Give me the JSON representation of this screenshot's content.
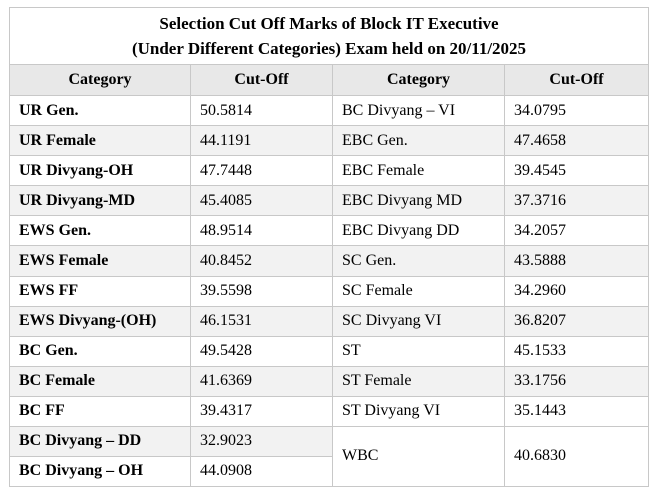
{
  "title_line1": "Selection Cut Off Marks of Block IT Executive",
  "title_line2": "(Under Different Categories) Exam held on 20/11/2025",
  "headers": {
    "category": "Category",
    "cutoff": "Cut-Off"
  },
  "left_rows": [
    {
      "category": "UR Gen.",
      "cutoff": "50.5814"
    },
    {
      "category": "UR Female",
      "cutoff": "44.1191"
    },
    {
      "category": "UR Divyang-OH",
      "cutoff": "47.7448"
    },
    {
      "category": "UR Divyang-MD",
      "cutoff": "45.4085"
    },
    {
      "category": "EWS Gen.",
      "cutoff": "48.9514"
    },
    {
      "category": "EWS Female",
      "cutoff": "40.8452"
    },
    {
      "category": "EWS FF",
      "cutoff": "39.5598"
    },
    {
      "category": "EWS Divyang-(OH)",
      "cutoff": "46.1531"
    },
    {
      "category": "BC Gen.",
      "cutoff": "49.5428"
    },
    {
      "category": "BC Female",
      "cutoff": "41.6369"
    },
    {
      "category": "BC FF",
      "cutoff": "39.4317"
    },
    {
      "category": "BC Divyang – DD",
      "cutoff": "32.9023"
    },
    {
      "category": "BC Divyang – OH",
      "cutoff": "44.0908"
    }
  ],
  "right_rows": [
    {
      "category": "BC Divyang – VI",
      "cutoff": "34.0795"
    },
    {
      "category": "EBC Gen.",
      "cutoff": "47.4658"
    },
    {
      "category": "EBC Female",
      "cutoff": "39.4545"
    },
    {
      "category": "EBC Divyang MD",
      "cutoff": "37.3716"
    },
    {
      "category": "EBC Divyang DD",
      "cutoff": "34.2057"
    },
    {
      "category": "SC Gen.",
      "cutoff": "43.5888"
    },
    {
      "category": "SC Female",
      "cutoff": "34.2960"
    },
    {
      "category": "SC Divyang VI",
      "cutoff": "36.8207"
    },
    {
      "category": "ST",
      "cutoff": "45.1533"
    },
    {
      "category": "ST Female",
      "cutoff": "33.1756"
    },
    {
      "category": "ST Divyang VI",
      "cutoff": "35.1443"
    },
    {
      "category": "WBC",
      "cutoff": "40.6830"
    }
  ]
}
